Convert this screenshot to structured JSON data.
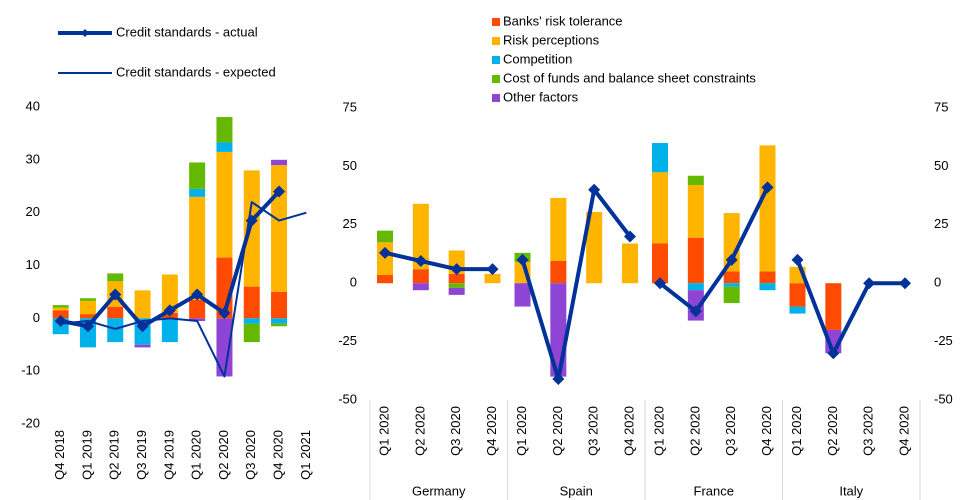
{
  "chart_data": [
    {
      "type": "bar",
      "stacked": true,
      "categories": [
        "Q4 2018",
        "Q1 2019",
        "Q2 2019",
        "Q3 2019",
        "Q4 2019",
        "Q1 2020",
        "Q2 2020",
        "Q3 2020",
        "Q4 2020",
        "Q1 2021"
      ],
      "series": [
        {
          "name": "Banks' risk tolerance",
          "color": "#ff4b00",
          "values": [
            1.5,
            0.8,
            2.2,
            0,
            1,
            3.5,
            11.5,
            6,
            5,
            null
          ]
        },
        {
          "name": "Risk perceptions",
          "color": "#ffb400",
          "values": [
            0.5,
            2.5,
            4.8,
            5.3,
            7.3,
            19.5,
            20,
            22,
            24,
            null
          ]
        },
        {
          "name": "Competition",
          "color": "#00b1ea",
          "values": [
            -3,
            -5.5,
            -4.5,
            -5,
            -4.5,
            1.5,
            1.8,
            -1,
            -1,
            null
          ]
        },
        {
          "name": "Cost of funds and balance sheet constraints",
          "color": "#65b800",
          "values": [
            0.5,
            0.5,
            1.5,
            0,
            0,
            5,
            4.8,
            -3.5,
            -0.5,
            null
          ]
        },
        {
          "name": "Other factors",
          "color": "#8e44d4",
          "values": [
            0,
            0,
            0,
            -0.5,
            0,
            -0.5,
            -11,
            0,
            1,
            null
          ]
        },
        {
          "name": "Credit standards - actual",
          "type": "line",
          "color": "#003299",
          "width": 4,
          "marker": "diamond",
          "values": [
            -0.5,
            -1.5,
            4.5,
            -1.5,
            1.5,
            4.5,
            1,
            18.5,
            24,
            null
          ]
        },
        {
          "name": "Credit standards - expected",
          "type": "line",
          "color": "#003299",
          "width": 2,
          "values": [
            -1,
            -0.5,
            -2,
            -0.5,
            0,
            -0.5,
            -11,
            22,
            18.5,
            20
          ]
        }
      ],
      "ylim": [
        -20,
        40
      ],
      "yticks": [
        -20,
        -10,
        0,
        10,
        20,
        30,
        40
      ]
    },
    {
      "type": "bar",
      "stacked": true,
      "groups": [
        "Germany",
        "Spain",
        "France",
        "Italy"
      ],
      "categories": [
        "Q1 2020",
        "Q2 2020",
        "Q3 2020",
        "Q4 2020",
        "Q1 2020",
        "Q2 2020",
        "Q3 2020",
        "Q4 2020",
        "Q1 2020",
        "Q2 2020",
        "Q3 2020",
        "Q4 2020",
        "Q1 2020",
        "Q2 2020",
        "Q3 2020",
        "Q4 2020"
      ],
      "series": [
        {
          "color": "#ff4b00",
          "values": [
            3.5,
            6,
            4,
            0,
            0,
            9.5,
            0,
            0,
            17,
            19.5,
            5,
            5,
            -10,
            -20,
            0,
            0
          ]
        },
        {
          "color": "#ffb400",
          "values": [
            14,
            28,
            10,
            4,
            9,
            27,
            30.5,
            17,
            30.5,
            22.5,
            25,
            54,
            7,
            0,
            0,
            0
          ]
        },
        {
          "color": "#00b1ea",
          "values": [
            0,
            0,
            0,
            0,
            0,
            0,
            0,
            0,
            12.5,
            -3,
            -1.5,
            -3,
            -3,
            0,
            0,
            0
          ]
        },
        {
          "color": "#65b800",
          "values": [
            5,
            0,
            -2,
            0,
            4,
            0,
            0,
            0,
            0,
            4,
            -7,
            0,
            0,
            0,
            0,
            0
          ]
        },
        {
          "color": "#8e44d4",
          "values": [
            0,
            -3,
            -3,
            0,
            -10,
            -40,
            0,
            0,
            0,
            -13,
            0,
            0,
            0,
            -10,
            0,
            0
          ]
        },
        {
          "type": "line",
          "color": "#003299",
          "width": 4,
          "marker": "diamond",
          "values": [
            13,
            9.5,
            6,
            6,
            10,
            -41,
            40,
            20,
            0,
            -12,
            10,
            41,
            10,
            -30,
            0,
            0
          ]
        }
      ],
      "ylim": [
        -50,
        75
      ],
      "yticks": [
        -50,
        -25,
        0,
        25,
        50,
        75
      ],
      "y2lim": [
        -50,
        75
      ],
      "y2ticks": [
        -50,
        -25,
        0,
        25,
        50,
        75
      ]
    }
  ]
}
